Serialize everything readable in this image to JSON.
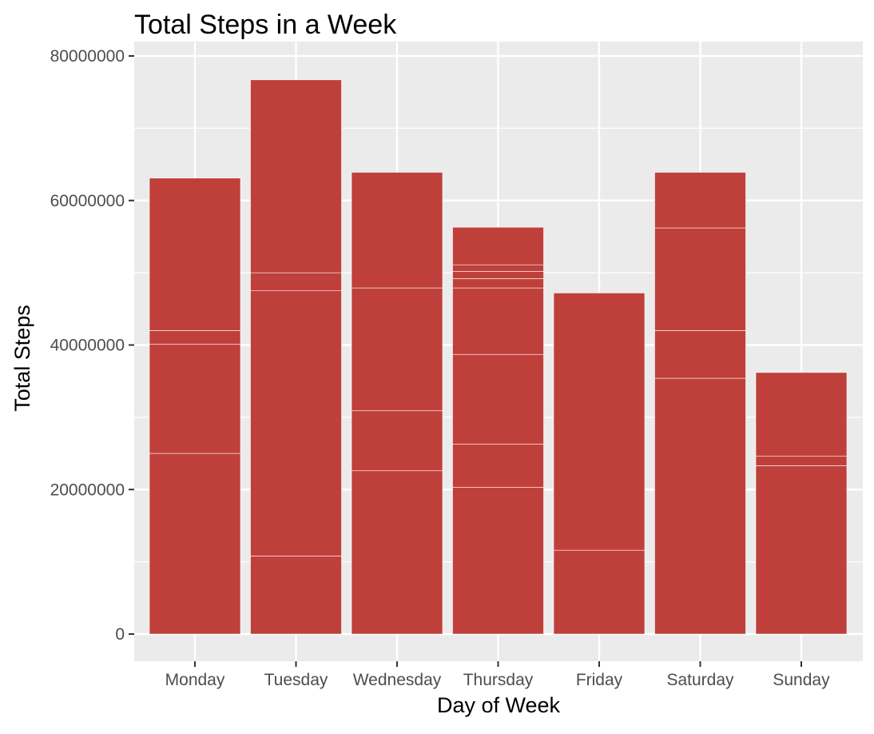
{
  "chart_data": {
    "type": "bar",
    "stacked": true,
    "title": "Total Steps in a Week",
    "xlabel": "Day of Week",
    "ylabel": "Total Steps",
    "categories": [
      "Monday",
      "Tuesday",
      "Wednesday",
      "Thursday",
      "Friday",
      "Saturday",
      "Sunday"
    ],
    "ylim": [
      0,
      80000000
    ],
    "yticks": [
      0,
      20000000,
      40000000,
      60000000,
      80000000
    ],
    "ytick_labels": [
      "0",
      "20000000",
      "40000000",
      "60000000",
      "80000000"
    ],
    "totals": [
      63100000,
      76700000,
      63900000,
      56300000,
      47200000,
      63900000,
      36200000
    ],
    "segment_boundaries": [
      [
        25000000,
        40100000,
        42000000
      ],
      [
        10800000,
        47500000,
        50000000
      ],
      [
        22600000,
        30900000,
        47900000
      ],
      [
        20300000,
        26300000,
        38700000,
        47900000,
        49200000,
        50200000,
        51100000
      ],
      [
        11600000
      ],
      [
        35400000,
        42000000,
        56200000
      ],
      [
        23300000,
        24600000
      ]
    ],
    "bar_color": "#bf403b",
    "panel_color": "#ebebeb",
    "grid": true,
    "legend": "none"
  }
}
